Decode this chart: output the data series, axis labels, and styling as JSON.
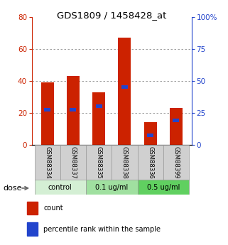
{
  "title": "GDS1809 / 1458428_at",
  "samples": [
    "GSM88334",
    "GSM88337",
    "GSM88335",
    "GSM88338",
    "GSM88336",
    "GSM88399"
  ],
  "red_values": [
    39,
    43,
    33,
    67,
    14,
    23
  ],
  "blue_values": [
    22,
    22,
    24,
    36,
    6,
    15
  ],
  "left_ylim": [
    0,
    80
  ],
  "right_ylim": [
    0,
    100
  ],
  "left_yticks": [
    0,
    20,
    40,
    60,
    80
  ],
  "right_yticks": [
    0,
    25,
    50,
    75,
    100
  ],
  "right_yticklabels": [
    "0",
    "25",
    "50",
    "75",
    "100%"
  ],
  "groups": [
    {
      "label": "control",
      "cols": [
        0,
        1
      ],
      "color": "#d4efd4"
    },
    {
      "label": "0.1 ug/ml",
      "cols": [
        2,
        3
      ],
      "color": "#a0e0a0"
    },
    {
      "label": "0.5 ug/ml",
      "cols": [
        4,
        5
      ],
      "color": "#60d060"
    }
  ],
  "bar_color": "#cc2200",
  "blue_color": "#2244cc",
  "bar_width": 0.5,
  "grid_color": "#888888",
  "label_color_left": "#cc2200",
  "label_color_right": "#2244cc",
  "dose_label": "dose",
  "legend_count": "count",
  "legend_percentile": "percentile rank within the sample",
  "sample_box_color": "#d0d0d0",
  "title_fontsize": 9.5,
  "tick_fontsize": 7.5,
  "sample_fontsize": 6,
  "group_fontsize": 7,
  "legend_fontsize": 7,
  "dose_fontsize": 8
}
